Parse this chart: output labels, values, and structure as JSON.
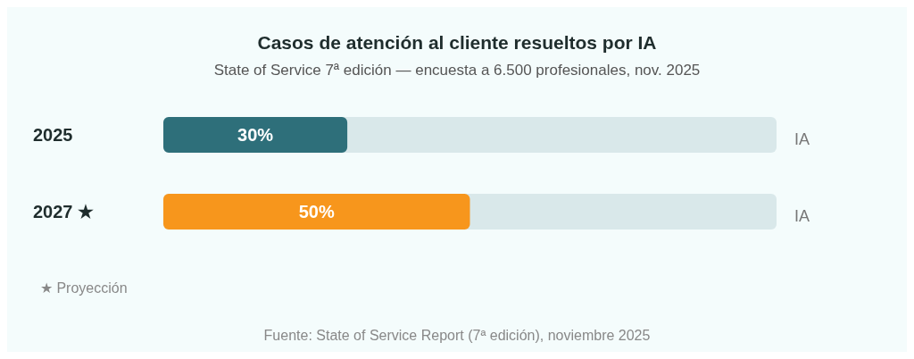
{
  "chart_data": {
    "type": "bar",
    "orientation": "horizontal",
    "title": "Casos de atención al cliente resueltos por IA",
    "subtitle": "State of Service 7ª edición — encuesta a 6.500 profesionales, nov. 2025",
    "categories": [
      "2025",
      "2027 ★"
    ],
    "values": [
      30,
      50
    ],
    "colors": [
      "#2e6f7a",
      "#f7961c"
    ],
    "value_labels": [
      "30%",
      "50%"
    ],
    "xlim": [
      0,
      100
    ],
    "tick_labels": "y",
    "annotations": [
      "IA",
      "IA",
      "★ Proyección",
      "Fuente: State of Service Report (7ª edición), noviembre 2025"
    ]
  }
}
